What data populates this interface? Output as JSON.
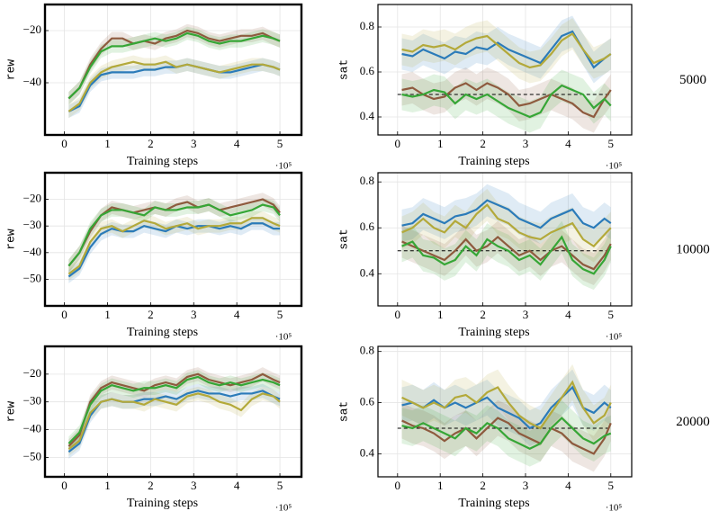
{
  "chart_data": [
    {
      "type": "line",
      "x_label": "Training steps",
      "y_label": "rew",
      "x_scale_label": "·10⁵",
      "x": [
        0.1,
        0.35,
        0.6,
        0.85,
        1.1,
        1.35,
        1.6,
        1.85,
        2.1,
        2.35,
        2.6,
        2.85,
        3.1,
        3.35,
        3.6,
        3.85,
        4.1,
        4.35,
        4.6,
        4.85,
        5.0
      ],
      "xlim": [
        -0.45,
        5.5
      ],
      "xticks": [
        0,
        1,
        2,
        3,
        4,
        5
      ],
      "ylim": [
        -60,
        -10
      ],
      "yticks": [
        {
          "value": -40,
          "label": "−40"
        },
        {
          "value": -20,
          "label": "−20"
        }
      ],
      "grid": true,
      "series": [
        {
          "color": "#2b7bb9",
          "band": 2.5,
          "values": [
            -51,
            -49,
            -41,
            -37,
            -36,
            -36,
            -36,
            -35,
            -35,
            -34,
            -34,
            -33,
            -34,
            -35,
            -36,
            -36,
            -35,
            -34,
            -33,
            -34,
            -35
          ]
        },
        {
          "color": "#b3a93a",
          "band": 2.5,
          "values": [
            -51,
            -48,
            -40,
            -36,
            -34,
            -33,
            -32,
            -33,
            -33,
            -32,
            -34,
            -33,
            -34,
            -35,
            -36,
            -35,
            -34,
            -33,
            -33,
            -34,
            -35
          ]
        },
        {
          "color": "#8e5a3e",
          "band": 2.5,
          "values": [
            -46,
            -42,
            -33,
            -27,
            -23,
            -23,
            -25,
            -24,
            -25,
            -23,
            -22,
            -20,
            -21,
            -23,
            -24,
            -23,
            -22,
            -22,
            -21,
            -23,
            -24
          ]
        },
        {
          "color": "#36a636",
          "band": 2.5,
          "values": [
            -46,
            -42,
            -34,
            -28,
            -26,
            -26,
            -25,
            -24,
            -23,
            -24,
            -23,
            -21,
            -22,
            -24,
            -25,
            -24,
            -24,
            -23,
            -22,
            -23,
            -24
          ]
        }
      ]
    },
    {
      "type": "line",
      "x_label": "Training steps",
      "y_label": "sat",
      "x_scale_label": "·10⁵",
      "annotation": "5000",
      "x": [
        0.1,
        0.35,
        0.6,
        0.85,
        1.1,
        1.35,
        1.6,
        1.85,
        2.1,
        2.35,
        2.6,
        2.85,
        3.1,
        3.35,
        3.6,
        3.85,
        4.1,
        4.35,
        4.6,
        4.85,
        5.0
      ],
      "xlim": [
        -0.46,
        5.49
      ],
      "xticks": [
        0,
        1,
        2,
        3,
        4,
        5
      ],
      "ylim": [
        0.32,
        0.9
      ],
      "yticks": [
        0.4,
        0.6,
        0.8
      ],
      "grid": true,
      "reference_line": 0.5,
      "series": [
        {
          "color": "#2b7bb9",
          "band": 0.07,
          "values": [
            0.68,
            0.67,
            0.7,
            0.68,
            0.66,
            0.69,
            0.68,
            0.71,
            0.7,
            0.73,
            0.7,
            0.68,
            0.66,
            0.64,
            0.7,
            0.76,
            0.78,
            0.7,
            0.62,
            0.66,
            0.68
          ]
        },
        {
          "color": "#b3a93a",
          "band": 0.07,
          "values": [
            0.7,
            0.69,
            0.72,
            0.71,
            0.72,
            0.7,
            0.73,
            0.75,
            0.76,
            0.72,
            0.68,
            0.64,
            0.62,
            0.63,
            0.68,
            0.74,
            0.77,
            0.7,
            0.64,
            0.66,
            0.68
          ]
        },
        {
          "color": "#8e5a3e",
          "band": 0.07,
          "values": [
            0.52,
            0.53,
            0.5,
            0.48,
            0.49,
            0.53,
            0.55,
            0.52,
            0.55,
            0.53,
            0.5,
            0.45,
            0.46,
            0.48,
            0.5,
            0.48,
            0.46,
            0.42,
            0.4,
            0.48,
            0.52
          ]
        },
        {
          "color": "#36a636",
          "band": 0.07,
          "values": [
            0.5,
            0.49,
            0.5,
            0.52,
            0.51,
            0.46,
            0.5,
            0.48,
            0.5,
            0.47,
            0.44,
            0.42,
            0.4,
            0.42,
            0.5,
            0.54,
            0.52,
            0.5,
            0.44,
            0.48,
            0.45
          ]
        }
      ]
    },
    {
      "type": "line",
      "x_label": "Training steps",
      "y_label": "rew",
      "x_scale_label": "·10⁵",
      "x": [
        0.1,
        0.35,
        0.6,
        0.85,
        1.1,
        1.35,
        1.6,
        1.85,
        2.1,
        2.35,
        2.6,
        2.85,
        3.1,
        3.35,
        3.6,
        3.85,
        4.1,
        4.35,
        4.6,
        4.85,
        5.0
      ],
      "xlim": [
        -0.45,
        5.5
      ],
      "xticks": [
        0,
        1,
        2,
        3,
        4,
        5
      ],
      "ylim": [
        -60,
        -10
      ],
      "yticks": [
        {
          "value": -50,
          "label": "−50"
        },
        {
          "value": -40,
          "label": "−40"
        },
        {
          "value": -30,
          "label": "−30"
        },
        {
          "value": -20,
          "label": "−20"
        }
      ],
      "grid": true,
      "series": [
        {
          "color": "#2b7bb9",
          "band": 2.5,
          "values": [
            -49,
            -46,
            -38,
            -33,
            -31,
            -32,
            -32,
            -30,
            -31,
            -32,
            -30,
            -31,
            -30,
            -30,
            -31,
            -30,
            -31,
            -29,
            -29,
            -31,
            -31
          ]
        },
        {
          "color": "#b3a93a",
          "band": 2.5,
          "values": [
            -48,
            -45,
            -36,
            -31,
            -30,
            -32,
            -30,
            -28,
            -29,
            -31,
            -30,
            -29,
            -31,
            -30,
            -30,
            -29,
            -29,
            -27,
            -27,
            -29,
            -30
          ]
        },
        {
          "color": "#8e5a3e",
          "band": 2.5,
          "values": [
            -45,
            -40,
            -32,
            -26,
            -23,
            -24,
            -25,
            -24,
            -23,
            -24,
            -22,
            -21,
            -23,
            -22,
            -24,
            -23,
            -22,
            -21,
            -20,
            -22,
            -25
          ]
        },
        {
          "color": "#36a636",
          "band": 2.5,
          "values": [
            -45,
            -40,
            -31,
            -26,
            -24,
            -24,
            -25,
            -26,
            -23,
            -24,
            -24,
            -23,
            -23,
            -22,
            -24,
            -26,
            -25,
            -24,
            -22,
            -23,
            -26
          ]
        }
      ]
    },
    {
      "type": "line",
      "x_label": "Training steps",
      "y_label": "sat",
      "x_scale_label": "·10⁵",
      "annotation": "10000",
      "x": [
        0.1,
        0.35,
        0.6,
        0.85,
        1.1,
        1.35,
        1.6,
        1.85,
        2.1,
        2.35,
        2.6,
        2.85,
        3.1,
        3.35,
        3.6,
        3.85,
        4.1,
        4.35,
        4.6,
        4.85,
        5.0
      ],
      "xlim": [
        -0.46,
        5.49
      ],
      "xticks": [
        0,
        1,
        2,
        3,
        4,
        5
      ],
      "ylim": [
        0.26,
        0.84
      ],
      "yticks": [
        0.4,
        0.6,
        0.8
      ],
      "grid": true,
      "reference_line": 0.5,
      "series": [
        {
          "color": "#2b7bb9",
          "band": 0.07,
          "values": [
            0.61,
            0.62,
            0.66,
            0.64,
            0.62,
            0.65,
            0.66,
            0.68,
            0.72,
            0.7,
            0.68,
            0.64,
            0.62,
            0.6,
            0.64,
            0.66,
            0.68,
            0.62,
            0.6,
            0.64,
            0.62
          ]
        },
        {
          "color": "#b3a93a",
          "band": 0.07,
          "values": [
            0.58,
            0.6,
            0.64,
            0.6,
            0.58,
            0.63,
            0.6,
            0.66,
            0.7,
            0.64,
            0.62,
            0.58,
            0.56,
            0.55,
            0.58,
            0.6,
            0.62,
            0.55,
            0.52,
            0.57,
            0.6
          ]
        },
        {
          "color": "#8e5a3e",
          "band": 0.07,
          "values": [
            0.54,
            0.52,
            0.5,
            0.48,
            0.46,
            0.5,
            0.55,
            0.5,
            0.52,
            0.56,
            0.52,
            0.48,
            0.5,
            0.46,
            0.5,
            0.52,
            0.48,
            0.44,
            0.42,
            0.48,
            0.53
          ]
        },
        {
          "color": "#36a636",
          "band": 0.07,
          "values": [
            0.52,
            0.54,
            0.48,
            0.47,
            0.44,
            0.46,
            0.52,
            0.48,
            0.55,
            0.52,
            0.5,
            0.46,
            0.48,
            0.44,
            0.5,
            0.56,
            0.46,
            0.42,
            0.4,
            0.46,
            0.52
          ]
        }
      ]
    },
    {
      "type": "line",
      "x_label": "Training steps",
      "y_label": "rew",
      "x_scale_label": "·10⁵",
      "x": [
        0.1,
        0.35,
        0.6,
        0.85,
        1.1,
        1.35,
        1.6,
        1.85,
        2.1,
        2.35,
        2.6,
        2.85,
        3.1,
        3.35,
        3.6,
        3.85,
        4.1,
        4.35,
        4.6,
        4.85,
        5.0
      ],
      "xlim": [
        -0.45,
        5.5
      ],
      "xticks": [
        0,
        1,
        2,
        3,
        4,
        5
      ],
      "ylim": [
        -57,
        -10
      ],
      "yticks": [
        {
          "value": -50,
          "label": "−50"
        },
        {
          "value": -40,
          "label": "−40"
        },
        {
          "value": -30,
          "label": "−30"
        },
        {
          "value": -20,
          "label": "−20"
        }
      ],
      "grid": true,
      "series": [
        {
          "color": "#2b7bb9",
          "band": 2.5,
          "values": [
            -48,
            -45,
            -35,
            -30,
            -29,
            -30,
            -30,
            -29,
            -29,
            -28,
            -29,
            -27,
            -26,
            -27,
            -27,
            -28,
            -27,
            -27,
            -26,
            -28,
            -29
          ]
        },
        {
          "color": "#b3a93a",
          "band": 2.5,
          "values": [
            -47,
            -44,
            -34,
            -30,
            -29,
            -30,
            -30,
            -31,
            -29,
            -30,
            -31,
            -28,
            -27,
            -28,
            -30,
            -31,
            -33,
            -29,
            -27,
            -28,
            -30
          ]
        },
        {
          "color": "#8e5a3e",
          "band": 2.5,
          "values": [
            -46,
            -42,
            -30,
            -25,
            -23,
            -24,
            -25,
            -26,
            -24,
            -23,
            -24,
            -21,
            -20,
            -22,
            -23,
            -24,
            -23,
            -22,
            -20,
            -22,
            -23
          ]
        },
        {
          "color": "#36a636",
          "band": 2.5,
          "values": [
            -45,
            -41,
            -31,
            -26,
            -24,
            -25,
            -26,
            -25,
            -25,
            -24,
            -25,
            -22,
            -21,
            -23,
            -24,
            -23,
            -24,
            -23,
            -22,
            -23,
            -24
          ]
        }
      ]
    },
    {
      "type": "line",
      "x_label": "Training steps",
      "y_label": "sat",
      "x_scale_label": "·10⁵",
      "annotation": "20000",
      "x": [
        0.1,
        0.35,
        0.6,
        0.85,
        1.1,
        1.35,
        1.6,
        1.85,
        2.1,
        2.35,
        2.6,
        2.85,
        3.1,
        3.35,
        3.6,
        3.85,
        4.1,
        4.35,
        4.6,
        4.85,
        5.0
      ],
      "xlim": [
        -0.46,
        5.49
      ],
      "xticks": [
        0,
        1,
        2,
        3,
        4,
        5
      ],
      "ylim": [
        0.31,
        0.82
      ],
      "yticks": [
        0.4,
        0.6,
        0.8
      ],
      "grid": true,
      "reference_line": 0.5,
      "series": [
        {
          "color": "#2b7bb9",
          "band": 0.07,
          "values": [
            0.59,
            0.6,
            0.58,
            0.61,
            0.58,
            0.6,
            0.58,
            0.6,
            0.62,
            0.58,
            0.56,
            0.54,
            0.5,
            0.52,
            0.58,
            0.62,
            0.66,
            0.58,
            0.56,
            0.6,
            0.58
          ]
        },
        {
          "color": "#b3a93a",
          "band": 0.07,
          "values": [
            0.62,
            0.6,
            0.58,
            0.6,
            0.58,
            0.62,
            0.63,
            0.6,
            0.64,
            0.66,
            0.6,
            0.55,
            0.52,
            0.5,
            0.56,
            0.62,
            0.68,
            0.58,
            0.52,
            0.55,
            0.6
          ]
        },
        {
          "color": "#8e5a3e",
          "band": 0.07,
          "values": [
            0.53,
            0.51,
            0.5,
            0.48,
            0.45,
            0.48,
            0.5,
            0.46,
            0.5,
            0.54,
            0.52,
            0.48,
            0.46,
            0.44,
            0.5,
            0.48,
            0.44,
            0.42,
            0.4,
            0.46,
            0.52
          ]
        },
        {
          "color": "#36a636",
          "band": 0.07,
          "values": [
            0.51,
            0.5,
            0.52,
            0.5,
            0.48,
            0.46,
            0.5,
            0.48,
            0.52,
            0.5,
            0.46,
            0.44,
            0.42,
            0.44,
            0.5,
            0.54,
            0.5,
            0.46,
            0.44,
            0.47,
            0.48
          ]
        }
      ]
    }
  ]
}
